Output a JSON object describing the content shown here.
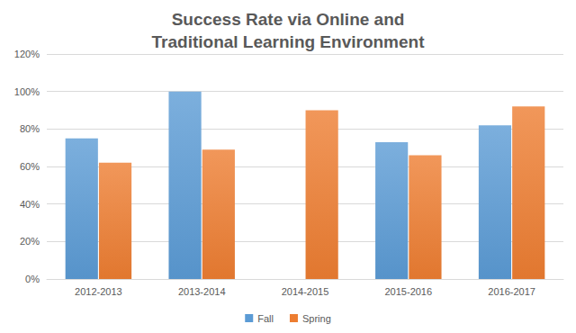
{
  "chart_data": {
    "type": "bar",
    "title": "Success Rate via Online and\nTraditional Learning Environment",
    "categories": [
      "2012-2013",
      "2013-2014",
      "2014-2015",
      "2015-2016",
      "2016-2017"
    ],
    "series": [
      {
        "name": "Fall",
        "color": "#5b9bd5",
        "values": [
          75,
          100,
          null,
          73,
          82
        ]
      },
      {
        "name": "Spring",
        "color": "#ed7d31",
        "values": [
          62,
          69,
          90,
          66,
          92
        ]
      }
    ],
    "ylim": [
      0,
      120
    ],
    "yticks": [
      {
        "value": 0,
        "label": "0%"
      },
      {
        "value": 20,
        "label": "20%"
      },
      {
        "value": 40,
        "label": "40%"
      },
      {
        "value": 60,
        "label": "60%"
      },
      {
        "value": 80,
        "label": "80%"
      },
      {
        "value": 100,
        "label": "100%"
      },
      {
        "value": 120,
        "label": "120%"
      }
    ],
    "grid": true,
    "legend": "bottom"
  }
}
